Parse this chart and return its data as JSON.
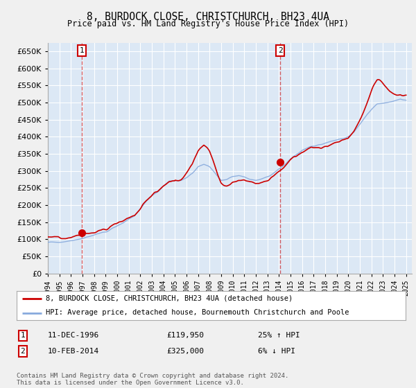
{
  "title": "8, BURDOCK CLOSE, CHRISTCHURCH, BH23 4UA",
  "subtitle": "Price paid vs. HM Land Registry's House Price Index (HPI)",
  "ylim": [
    0,
    675000
  ],
  "yticks": [
    0,
    50000,
    100000,
    150000,
    200000,
    250000,
    300000,
    350000,
    400000,
    450000,
    500000,
    550000,
    600000,
    650000
  ],
  "legend_line1": "8, BURDOCK CLOSE, CHRISTCHURCH, BH23 4UA (detached house)",
  "legend_line2": "HPI: Average price, detached house, Bournemouth Christchurch and Poole",
  "annotation1_date": "11-DEC-1996",
  "annotation1_price": "£119,950",
  "annotation1_pct": "25% ↑ HPI",
  "annotation2_date": "10-FEB-2014",
  "annotation2_price": "£325,000",
  "annotation2_pct": "6% ↓ HPI",
  "footer": "Contains HM Land Registry data © Crown copyright and database right 2024.\nThis data is licensed under the Open Government Licence v3.0.",
  "line_color_property": "#cc0000",
  "line_color_hpi": "#88aadd",
  "background_color": "#f0f0f0",
  "plot_bg_color": "#dce8f5",
  "grid_color": "#ffffff",
  "sale1_x": 1996.95,
  "sale1_y": 119950,
  "sale2_x": 2014.12,
  "sale2_y": 325000,
  "xmin": 1994,
  "xmax": 2025.5
}
